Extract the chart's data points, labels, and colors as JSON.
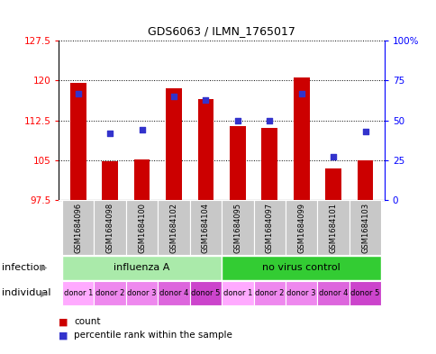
{
  "title": "GDS6063 / ILMN_1765017",
  "samples": [
    "GSM1684096",
    "GSM1684098",
    "GSM1684100",
    "GSM1684102",
    "GSM1684104",
    "GSM1684095",
    "GSM1684097",
    "GSM1684099",
    "GSM1684101",
    "GSM1684103"
  ],
  "bar_values": [
    119.5,
    104.8,
    105.2,
    118.5,
    116.5,
    111.5,
    111.0,
    120.5,
    103.5,
    105.0
  ],
  "dot_values_pct": [
    67,
    42,
    44,
    65,
    63,
    50,
    50,
    67,
    27,
    43
  ],
  "ylim": [
    97.5,
    127.5
  ],
  "yticks": [
    97.5,
    105.0,
    112.5,
    120.0,
    127.5
  ],
  "ytick_labels": [
    "97.5",
    "105",
    "112.5",
    "120",
    "127.5"
  ],
  "y2lim": [
    0,
    100
  ],
  "y2ticks": [
    0,
    25,
    50,
    75,
    100
  ],
  "y2tick_labels": [
    "0",
    "25",
    "50",
    "75",
    "100%"
  ],
  "bar_color": "#cc0000",
  "dot_color": "#3333cc",
  "bar_bottom": 97.5,
  "infections": [
    {
      "label": "influenza A",
      "start": 0,
      "end": 5,
      "color": "#aaeaaa"
    },
    {
      "label": "no virus control",
      "start": 5,
      "end": 10,
      "color": "#33cc33"
    }
  ],
  "individuals": [
    "donor 1",
    "donor 2",
    "donor 3",
    "donor 4",
    "donor 5",
    "donor 1",
    "donor 2",
    "donor 3",
    "donor 4",
    "donor 5"
  ],
  "ind_colors": [
    "#ffaaff",
    "#ee88ee",
    "#ee88ee",
    "#dd66dd",
    "#cc44cc",
    "#ffaaff",
    "#ee88ee",
    "#ee88ee",
    "#dd66dd",
    "#cc44cc"
  ],
  "bg_color": "#c8c8c8",
  "label_color": "#888888",
  "legend_count_color": "#cc0000",
  "legend_dot_color": "#3333cc"
}
